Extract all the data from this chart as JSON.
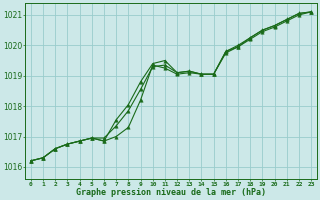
{
  "title": "Graphe pression niveau de la mer (hPa)",
  "bg_color": "#cce8e8",
  "grid_color": "#99cccc",
  "line_color": "#1a6b1a",
  "marker_color": "#1a6b1a",
  "xlim": [
    -0.5,
    23.5
  ],
  "ylim": [
    1015.6,
    1021.4
  ],
  "yticks": [
    1016,
    1017,
    1018,
    1019,
    1020,
    1021
  ],
  "xtick_labels": [
    "0",
    "1",
    "2",
    "3",
    "4",
    "5",
    "6",
    "7",
    "8",
    "9",
    "10",
    "11",
    "12",
    "13",
    "14",
    "15",
    "16",
    "17",
    "18",
    "19",
    "20",
    "21",
    "22",
    "23"
  ],
  "series1_x": [
    0,
    1,
    2,
    3,
    4,
    5,
    6,
    7,
    8,
    9,
    10,
    11,
    12,
    13,
    14,
    15,
    16,
    17,
    18,
    19,
    20,
    21,
    22,
    23
  ],
  "series1_y": [
    1016.2,
    1016.3,
    1016.6,
    1016.75,
    1016.85,
    1016.95,
    1016.85,
    1017.0,
    1017.3,
    1018.2,
    1019.35,
    1019.25,
    1019.05,
    1019.1,
    1019.05,
    1019.05,
    1019.75,
    1019.95,
    1020.2,
    1020.45,
    1020.6,
    1020.8,
    1021.0,
    1021.1
  ],
  "series2_x": [
    0,
    1,
    2,
    3,
    4,
    5,
    6,
    7,
    8,
    9,
    10,
    11,
    12,
    13,
    14,
    15,
    16,
    17,
    18,
    19,
    20,
    21,
    22,
    23
  ],
  "series2_y": [
    1016.2,
    1016.3,
    1016.6,
    1016.75,
    1016.85,
    1016.95,
    1016.85,
    1017.55,
    1018.05,
    1018.8,
    1019.4,
    1019.5,
    1019.1,
    1019.15,
    1019.05,
    1019.05,
    1019.8,
    1020.0,
    1020.25,
    1020.5,
    1020.65,
    1020.85,
    1021.05,
    1021.1
  ],
  "series3_x": [
    0,
    1,
    2,
    3,
    4,
    5,
    6,
    7,
    8,
    9,
    10,
    11,
    12,
    13,
    14,
    15,
    16,
    17,
    18,
    19,
    20,
    21,
    22,
    23
  ],
  "series3_y": [
    1016.2,
    1016.3,
    1016.6,
    1016.75,
    1016.85,
    1016.95,
    1016.95,
    1017.35,
    1017.85,
    1018.55,
    1019.3,
    1019.35,
    1019.1,
    1019.15,
    1019.05,
    1019.05,
    1019.8,
    1019.95,
    1020.25,
    1020.5,
    1020.65,
    1020.85,
    1021.05,
    1021.1
  ]
}
